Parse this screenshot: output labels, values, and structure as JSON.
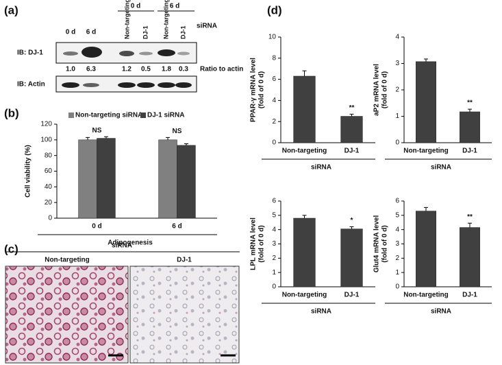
{
  "panel_labels": [
    "(a)",
    "(b)",
    "(c)",
    "(d)"
  ],
  "blot": {
    "groups": [
      "0 d",
      "6 d"
    ],
    "lanes": [
      "0 d",
      "6 d",
      "Non-targeting",
      "DJ-1",
      "Non-targeting",
      "DJ-1"
    ],
    "sirna_label": "siRNA",
    "rows": [
      "IB: DJ-1",
      "IB: Actin"
    ],
    "ratios": [
      "1.0",
      "6.3",
      "1.2",
      "0.5",
      "1.8",
      "0.3"
    ],
    "ratio_label": "Ratio to actin"
  },
  "images": {
    "header": "siRNA",
    "labels": [
      "Non-targeting",
      "DJ-1"
    ]
  },
  "chart_data": [
    {
      "type": "bar",
      "categories": [
        "0 d",
        "6 d"
      ],
      "series": [
        {
          "name": "Non-targeting siRNA",
          "color": "#808080",
          "values": [
            100,
            100
          ],
          "errors": [
            3,
            3
          ]
        },
        {
          "name": "DJ-1 siRNA",
          "color": "#404040",
          "values": [
            102,
            93
          ],
          "errors": [
            2,
            2
          ]
        }
      ],
      "annotations": [
        "NS",
        "NS"
      ],
      "y_label": [
        "Cell viability (%)"
      ],
      "x_label": "Adipogenesis",
      "ylim": [
        0,
        120
      ],
      "yticks": [
        0,
        20,
        40,
        60,
        80,
        100,
        120
      ]
    },
    {
      "type": "bar",
      "categories": [
        "Non-targeting",
        "DJ-1"
      ],
      "color": "#404040",
      "values": [
        6.3,
        2.5
      ],
      "errors": [
        0.5,
        0.2
      ],
      "annotations": [
        null,
        "**"
      ],
      "y_label": [
        "PPAR-γ mRNA level",
        "(fold of 0 d)"
      ],
      "x_label": "siRNA",
      "ylim": [
        0,
        10
      ],
      "yticks": [
        0,
        2,
        4,
        6,
        8,
        10
      ]
    },
    {
      "type": "bar",
      "categories": [
        "Non-targeting",
        "DJ-1"
      ],
      "color": "#404040",
      "values": [
        3.07,
        1.17
      ],
      "errors": [
        0.1,
        0.1
      ],
      "annotations": [
        null,
        "**"
      ],
      "y_label": [
        "aP2 mRNA level",
        "(fold of 0 d)"
      ],
      "x_label": "siRNA",
      "ylim": [
        0,
        4
      ],
      "yticks": [
        0,
        1,
        2,
        3,
        4
      ]
    },
    {
      "type": "bar",
      "categories": [
        "Non-targeting",
        "DJ-1"
      ],
      "color": "#404040",
      "values": [
        4.8,
        4.05
      ],
      "errors": [
        0.2,
        0.15
      ],
      "annotations": [
        null,
        "*"
      ],
      "y_label": [
        "LPL mRNA level",
        "(fold of 0 d)"
      ],
      "x_label": "siRNA",
      "ylim": [
        0,
        6
      ],
      "yticks": [
        0,
        1,
        2,
        3,
        4,
        5,
        6
      ]
    },
    {
      "type": "bar",
      "categories": [
        "Non-targeting",
        "DJ-1"
      ],
      "color": "#404040",
      "values": [
        5.3,
        4.15
      ],
      "errors": [
        0.25,
        0.3
      ],
      "annotations": [
        null,
        "**"
      ],
      "y_label": [
        "Glut4 mRNA level",
        "(fold of 0 d)"
      ],
      "x_label": "siRNA",
      "ylim": [
        0,
        6
      ],
      "yticks": [
        0,
        1,
        2,
        3,
        4,
        5,
        6
      ]
    }
  ]
}
